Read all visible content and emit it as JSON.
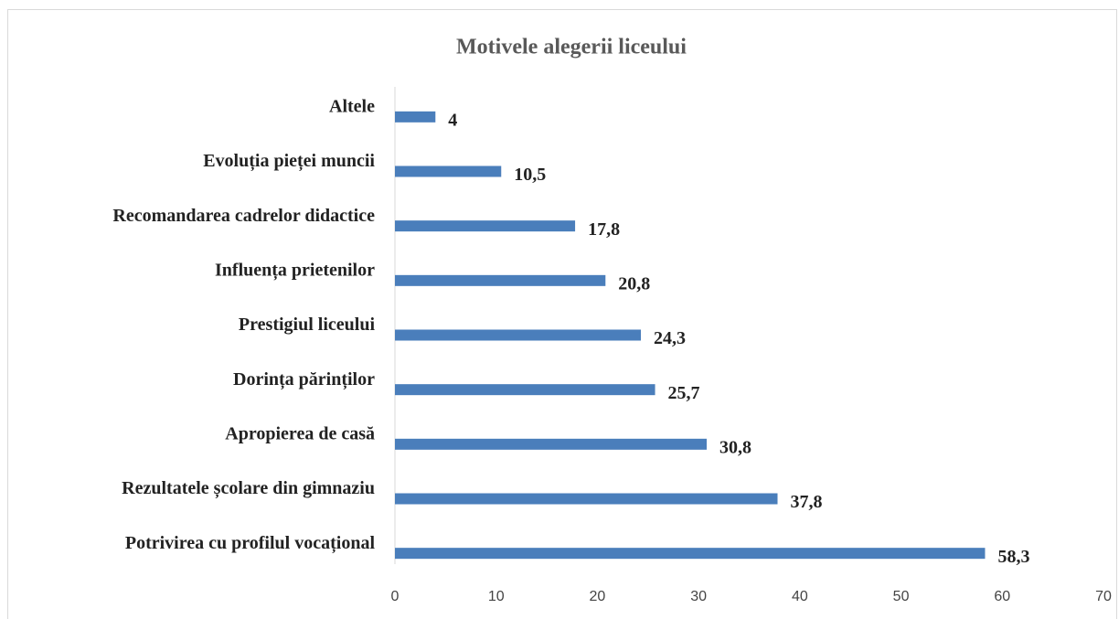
{
  "chart_data": {
    "type": "bar",
    "orientation": "horizontal",
    "title": "Motivele alegerii liceului",
    "categories": [
      "Altele",
      "Evoluția pieței muncii",
      "Recomandarea cadrelor didactice",
      "Influența prietenilor",
      "Prestigiul liceului",
      "Dorința părinților",
      "Apropierea de casă",
      "Rezultatele școlare din gimnaziu",
      "Potrivirea cu profilul vocațional"
    ],
    "values": [
      4,
      10.5,
      17.8,
      20.8,
      24.3,
      25.7,
      30.8,
      37.8,
      58.3
    ],
    "value_labels": [
      "4",
      "10,5",
      "17,8",
      "20,8",
      "24,3",
      "25,7",
      "30,8",
      "37,8",
      "58,3"
    ],
    "color": "#4a7ebb",
    "xlim": [
      0,
      70
    ],
    "xticks": [
      0,
      10,
      20,
      30,
      40,
      50,
      60,
      70
    ],
    "grid": false
  }
}
